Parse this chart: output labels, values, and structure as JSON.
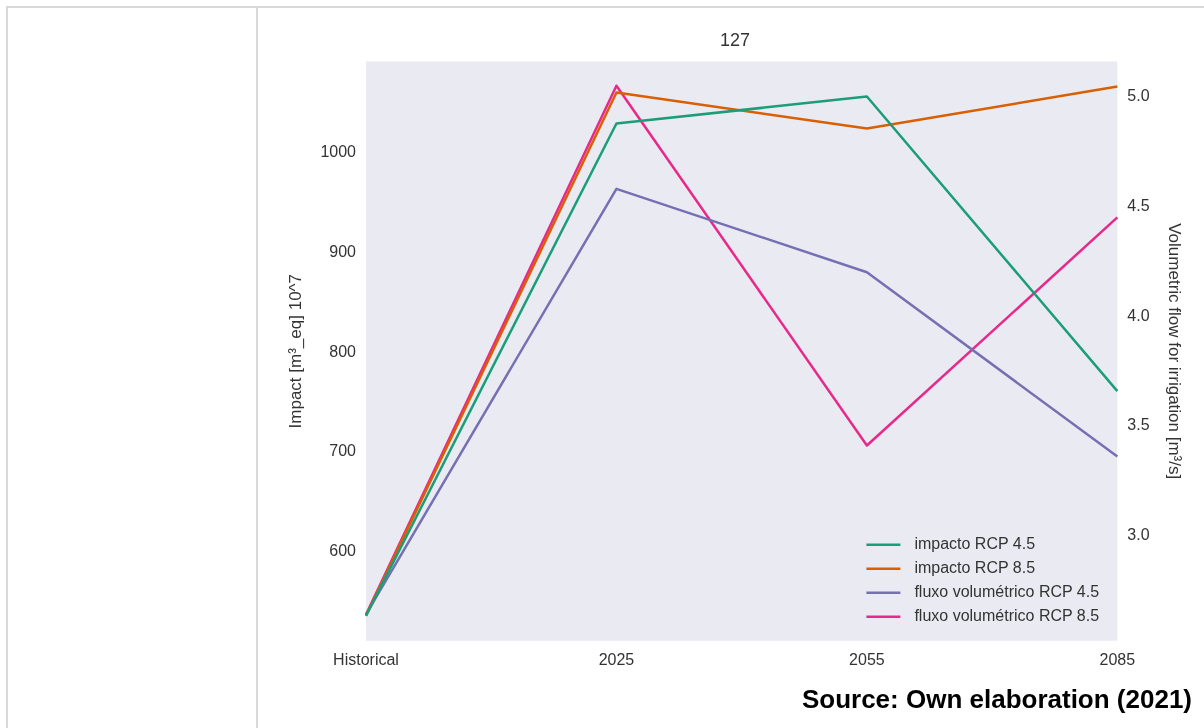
{
  "chart_data": {
    "type": "line",
    "title": "127",
    "categories": [
      "Historical",
      "2025",
      "2055",
      "2085"
    ],
    "ylabel": "Impact [m³_eq] 10^7",
    "y2label": "Volumetric flow for irrigation [m³/s]",
    "series": [
      {
        "name": "impacto RCP 4.5",
        "color": "#1b9e77",
        "values": [
          536,
          1029,
          1056,
          761
        ]
      },
      {
        "name": "impacto RCP 8.5",
        "color": "#d95f02",
        "values": [
          536,
          1060,
          1024,
          1066
        ]
      },
      {
        "name": "fluxo volumétrico RCP 4.5",
        "color": "#7570b3",
        "axis": "y2",
        "values": [
          2.64,
          4.58,
          4.2,
          3.36
        ]
      },
      {
        "name": "fluxo volumétrico RCP 8.5",
        "color": "#e7298a",
        "axis": "y2",
        "values": [
          2.64,
          5.05,
          3.41,
          4.45
        ]
      }
    ],
    "ylim": [
      511,
      1091
    ],
    "yticks": [
      600,
      700,
      800,
      900,
      1000
    ],
    "y2lim": [
      2.52,
      5.16
    ],
    "y2ticks": [
      {
        "value": 3,
        "label": "3.0"
      },
      {
        "value": 3.5,
        "label": "3.5"
      },
      {
        "value": 4,
        "label": "4.0"
      },
      {
        "value": 4.5,
        "label": "4.5"
      },
      {
        "value": 5,
        "label": "5.0"
      }
    ],
    "grid": false,
    "legend": "bottom right",
    "annotations": [
      "Source: Own elaboration (2021)"
    ]
  }
}
